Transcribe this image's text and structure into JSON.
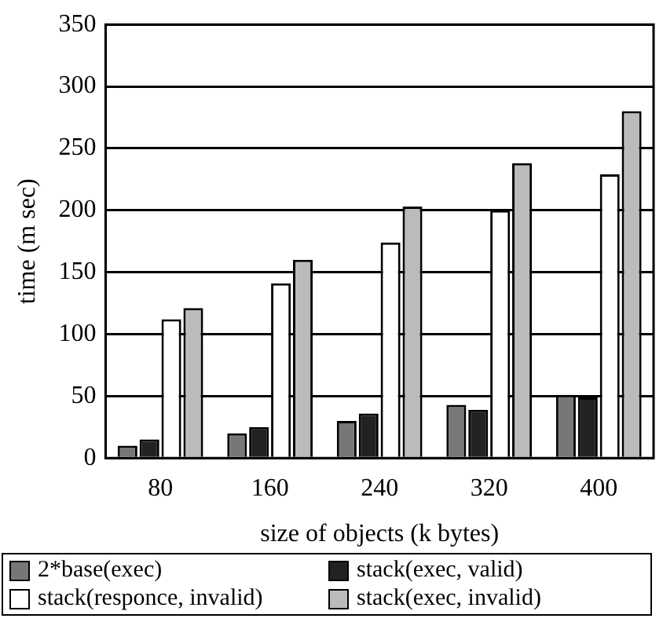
{
  "chart_data": {
    "type": "bar",
    "xlabel": "size of objects (k bytes)",
    "ylabel": "time (m sec)",
    "categories": [
      "80",
      "160",
      "240",
      "320",
      "400"
    ],
    "series": [
      {
        "name": "2*base(exec)",
        "color": "#777777",
        "values": [
          10,
          20,
          30,
          43,
          51
        ]
      },
      {
        "name": "stack(exec, valid)",
        "color": "#222222",
        "values": [
          15,
          25,
          36,
          39,
          49
        ]
      },
      {
        "name": "stack(responce, invalid)",
        "color": "#ffffff",
        "values": [
          112,
          141,
          174,
          200,
          229
        ]
      },
      {
        "name": "stack(exec, invalid)",
        "color": "#bbbbbb",
        "values": [
          121,
          160,
          203,
          238,
          280
        ]
      }
    ],
    "ylim": [
      0,
      350
    ],
    "yticks": [
      0,
      50,
      100,
      150,
      200,
      250,
      300,
      350
    ],
    "grid": "y",
    "legend": "bottom"
  }
}
